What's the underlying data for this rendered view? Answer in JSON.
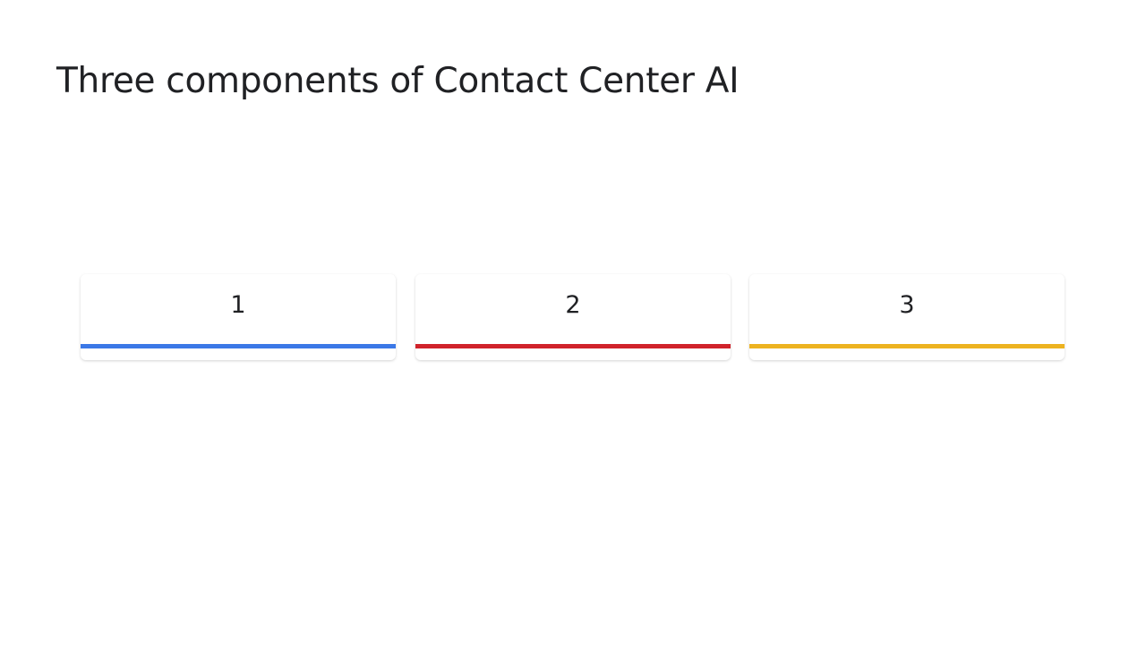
{
  "slide": {
    "title": "Three components of Contact Center AI"
  },
  "cards": [
    {
      "number": "1",
      "accent_color": "#3b78e7"
    },
    {
      "number": "2",
      "accent_color": "#d0232b"
    },
    {
      "number": "3",
      "accent_color": "#edb320"
    }
  ]
}
